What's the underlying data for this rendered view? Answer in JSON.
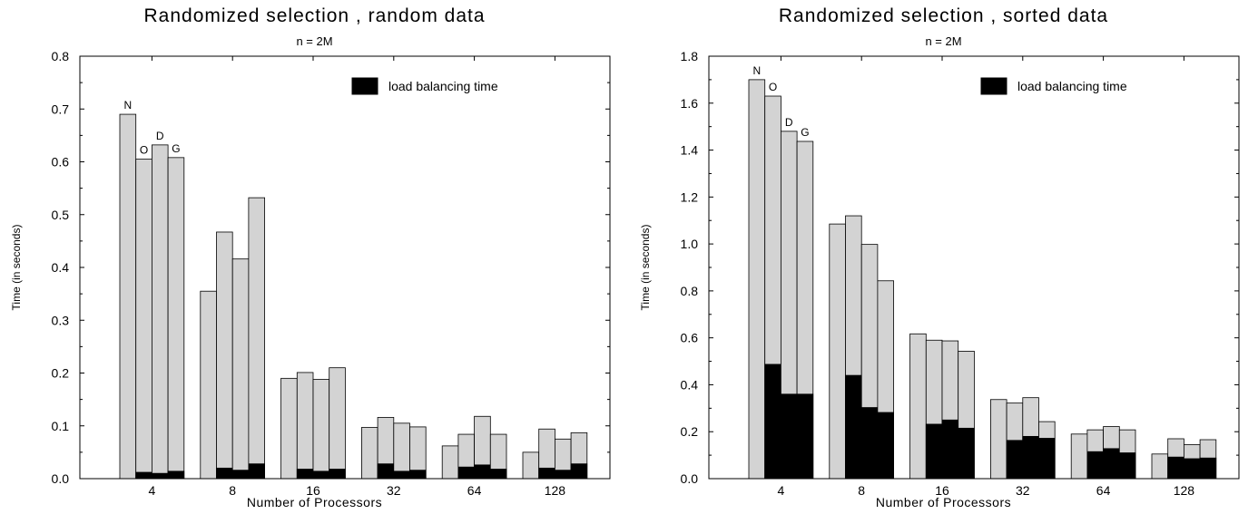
{
  "chart_data": [
    {
      "type": "bar",
      "title": "Randomized selection , random data",
      "subtitle": "n = 2M",
      "xlabel": "Number of Processors",
      "ylabel": "Time (in seconds)",
      "ylim": [
        0,
        0.8
      ],
      "yticks": [
        "0.0",
        "0.1",
        "0.2",
        "0.3",
        "0.4",
        "0.5",
        "0.6",
        "0.7",
        "0.8"
      ],
      "categories": [
        "4",
        "8",
        "16",
        "32",
        "64",
        "128"
      ],
      "legend": {
        "label": "load balancing time",
        "position": "top-right"
      },
      "series_labels": [
        "N",
        "O",
        "D",
        "G"
      ],
      "colors": {
        "total": "#d3d3d3",
        "load_balancing": "#000000"
      },
      "series": [
        {
          "name": "N",
          "total": [
            0.69,
            0.355,
            0.19,
            0.097,
            0.062,
            0.05
          ],
          "load_balancing": [
            0.0,
            0.0,
            0.0,
            0.0,
            0.0,
            0.0
          ]
        },
        {
          "name": "O",
          "total": [
            0.605,
            0.467,
            0.201,
            0.116,
            0.084,
            0.094
          ],
          "load_balancing": [
            0.012,
            0.02,
            0.018,
            0.028,
            0.022,
            0.02
          ]
        },
        {
          "name": "D",
          "total": [
            0.632,
            0.416,
            0.188,
            0.105,
            0.118,
            0.075
          ],
          "load_balancing": [
            0.01,
            0.016,
            0.014,
            0.014,
            0.026,
            0.016
          ]
        },
        {
          "name": "G",
          "total": [
            0.608,
            0.532,
            0.21,
            0.098,
            0.084,
            0.087
          ],
          "load_balancing": [
            0.014,
            0.028,
            0.018,
            0.016,
            0.018,
            0.028
          ]
        }
      ]
    },
    {
      "type": "bar",
      "title": "Randomized selection , sorted data",
      "subtitle": "n = 2M",
      "xlabel": "Number of Processors",
      "ylabel": "Time (in seconds)",
      "ylim": [
        0,
        1.8
      ],
      "yticks": [
        "0.0",
        "0.2",
        "0.4",
        "0.6",
        "0.8",
        "1.0",
        "1.2",
        "1.4",
        "1.6",
        "1.8"
      ],
      "categories": [
        "4",
        "8",
        "16",
        "32",
        "64",
        "128"
      ],
      "legend": {
        "label": "load balancing time",
        "position": "top-right"
      },
      "series_labels": [
        "N",
        "O",
        "D",
        "G"
      ],
      "colors": {
        "total": "#d3d3d3",
        "load_balancing": "#000000"
      },
      "series": [
        {
          "name": "N",
          "total": [
            1.7,
            1.085,
            0.617,
            0.337,
            0.19,
            0.105
          ],
          "load_balancing": [
            0.0,
            0.0,
            0.0,
            0.0,
            0.0,
            0.0
          ]
        },
        {
          "name": "O",
          "total": [
            1.63,
            1.12,
            0.59,
            0.322,
            0.208,
            0.17
          ],
          "load_balancing": [
            0.487,
            0.44,
            0.232,
            0.163,
            0.115,
            0.092
          ]
        },
        {
          "name": "D",
          "total": [
            1.48,
            0.998,
            0.587,
            0.345,
            0.222,
            0.145
          ],
          "load_balancing": [
            0.36,
            0.303,
            0.25,
            0.18,
            0.128,
            0.085
          ]
        },
        {
          "name": "G",
          "total": [
            1.437,
            0.843,
            0.543,
            0.243,
            0.208,
            0.166
          ],
          "load_balancing": [
            0.36,
            0.282,
            0.215,
            0.172,
            0.11,
            0.088
          ]
        }
      ]
    }
  ]
}
